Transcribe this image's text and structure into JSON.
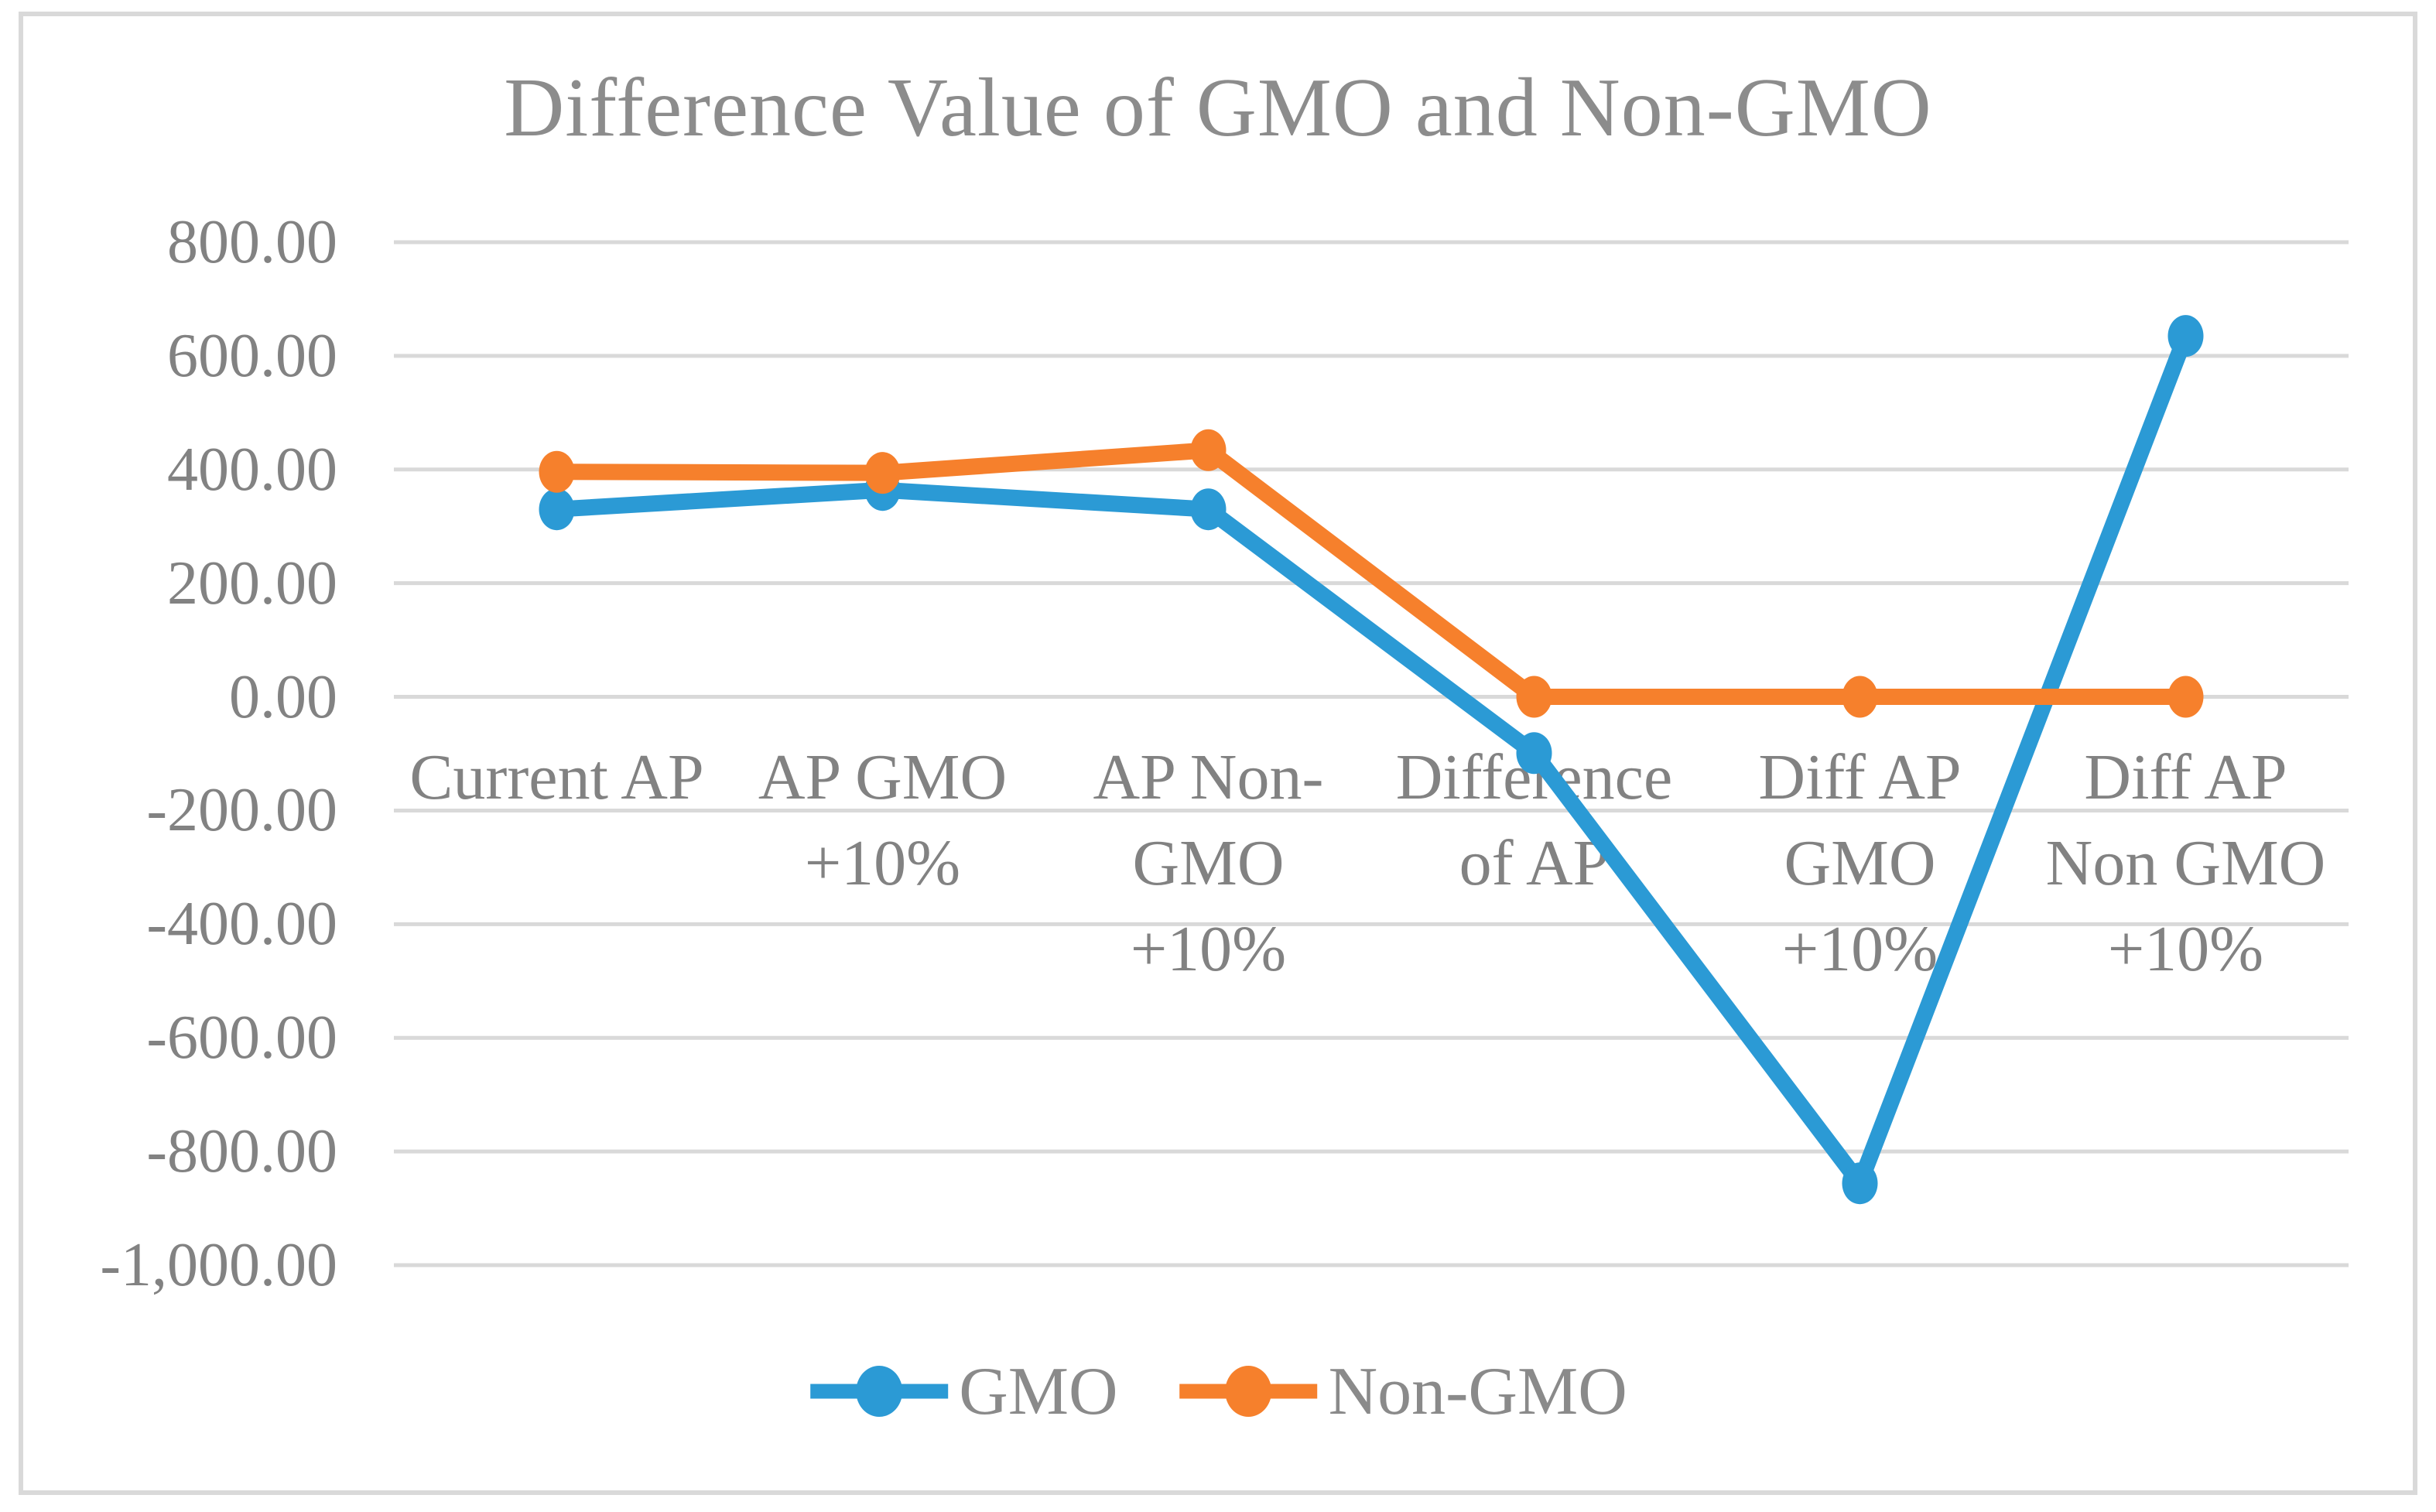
{
  "colors": {
    "background": "#FFFFFF",
    "border": "#D9D9D9",
    "grid": "#D9D9D9",
    "text": "#828282",
    "gmo_blue": "#2B9AD5",
    "non_gmo_orange": "#F6802C"
  },
  "chart_data": {
    "type": "line",
    "title": "Difference Value of GMO and Non-GMO",
    "xlabel": "",
    "ylabel": "",
    "grid": true,
    "legend_position": "bottom",
    "categories": [
      "Current AP",
      "AP GMO\n+10%",
      "AP Non-\nGMO\n+10%",
      "Difference\nof AP",
      "Diff AP\nGMO\n+10%",
      "Diff AP\nNon GMO\n+10%"
    ],
    "series": [
      {
        "name": "GMO",
        "color": "#2B9AD5",
        "values": [
          330,
          364,
          330,
          -99,
          -856,
          635
        ]
      },
      {
        "name": "Non-GMO",
        "color": "#F6802C",
        "values": [
          396,
          394,
          434,
          0,
          0,
          0
        ]
      }
    ],
    "y_axis": {
      "min": -1000,
      "max": 800,
      "step": 200,
      "tick_labels": [
        "800.00",
        "600.00",
        "400.00",
        "200.00",
        "0.00",
        "-200.00",
        "-400.00",
        "-600.00",
        "-800.00",
        "-1,000.00"
      ]
    }
  }
}
